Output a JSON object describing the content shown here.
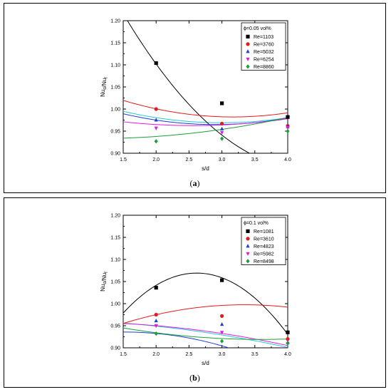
{
  "chart_data": [
    {
      "type": "line",
      "panel_label": "a",
      "ylabel": "Nu_d/Nu_f",
      "xlabel": "s/d",
      "xlim": [
        1.5,
        4.0
      ],
      "ylim": [
        0.9,
        1.2
      ],
      "xticks": [
        "1.5",
        "2.0",
        "2.5",
        "3.0",
        "3.5",
        "4.0"
      ],
      "yticks": [
        "0.90",
        "0.95",
        "1.00",
        "1.05",
        "1.10",
        "1.15",
        "1.20"
      ],
      "legend_title": "ϕ=0.05 vol%",
      "legend_position": "top-right",
      "grid": false,
      "series": [
        {
          "name": "Re=1103",
          "color": "#000000",
          "marker": "square",
          "x": [
            2.0,
            3.0,
            4.0
          ],
          "y": [
            1.104,
            1.013,
            0.982
          ],
          "fit": {
            "x": [
              1.5,
              4.0
            ],
            "coef": [
              1.691,
              -0.3835,
              0.0445
            ]
          }
        },
        {
          "name": "Re=3760",
          "color": "#e41a1c",
          "marker": "circle",
          "x": [
            2.0,
            3.0,
            4.0
          ],
          "y": [
            1.0,
            0.967,
            0.962
          ],
          "fit": {
            "x": [
              1.5,
              4.0
            ],
            "coef": [
              1.1175,
              -0.0855,
              0.0135
            ]
          }
        },
        {
          "name": "Re=5032",
          "color": "#1f3fcf",
          "marker": "triangle-up",
          "x": [
            2.0,
            3.0,
            4.0
          ],
          "y": [
            0.975,
            0.955,
            0.96
          ],
          "fit": {
            "x": [
              1.5,
              4.0
            ],
            "coef": [
              1.07,
              -0.0725,
              0.0125
            ]
          }
        },
        {
          "name": "Re=6254",
          "color": "#e019e0",
          "marker": "triangle-down",
          "x": [
            2.0,
            3.0,
            4.0
          ],
          "y": [
            0.957,
            0.947,
            0.958
          ],
          "fit": {
            "x": [
              1.5,
              4.0
            ],
            "coef": [
              1.012,
              -0.0385,
              0.0075
            ]
          }
        },
        {
          "name": "Re=8860",
          "color": "#1a9f3a",
          "marker": "diamond",
          "x": [
            2.0,
            3.0,
            4.0
          ],
          "y": [
            0.927,
            0.933,
            0.95
          ],
          "fit": {
            "x": [
              1.5,
              4.0
            ],
            "coef": [
              0.939,
              -0.0115,
              0.0055
            ]
          }
        }
      ],
      "extra_curves": [
        {
          "color": "#22c8d8",
          "coef": [
            1.0725,
            -0.069,
            0.0115
          ],
          "x": [
            1.5,
            4.0
          ]
        }
      ]
    },
    {
      "type": "line",
      "panel_label": "b",
      "ylabel": "Nu_d/Nu_f",
      "xlabel": "s/d",
      "xlim": [
        1.5,
        4.0
      ],
      "ylim": [
        0.9,
        1.2
      ],
      "xticks": [
        "1.5",
        "2.0",
        "2.5",
        "3.0",
        "3.5",
        "4.0"
      ],
      "yticks": [
        "0.90",
        "0.95",
        "1.00",
        "1.05",
        "1.10",
        "1.15",
        "1.20"
      ],
      "legend_title": "ϕ=0.1 vol%",
      "legend_position": "top-right",
      "grid": false,
      "series": [
        {
          "name": "Re=1081",
          "color": "#000000",
          "marker": "square",
          "x": [
            2.0,
            3.0,
            4.0
          ],
          "y": [
            1.036,
            1.053,
            0.935
          ],
          "fit": {
            "x": [
              1.5,
              4.0
            ],
            "coef": [
              0.5725,
              0.3795,
              -0.0725
            ]
          }
        },
        {
          "name": "Re=3610",
          "color": "#e41a1c",
          "marker": "circle",
          "x": [
            2.0,
            3.0,
            4.0
          ],
          "y": [
            0.975,
            0.972,
            0.92
          ],
          "fit": {
            "x": [
              1.5,
              4.0
            ],
            "coef": [
              0.858,
              0.0835,
              -0.0125
            ]
          }
        },
        {
          "name": "Re=4823",
          "color": "#1f3fcf",
          "marker": "triangle-up",
          "x": [
            2.0,
            3.0,
            4.0
          ],
          "y": [
            0.961,
            0.953,
            0.912
          ],
          "fit": {
            "x": [
              1.5,
              4.0
            ],
            "coef": [
              0.9015,
              0.0445,
              -0.0145
            ]
          }
        },
        {
          "name": "Re=5982",
          "color": "#e019e0",
          "marker": "triangle-down",
          "x": [
            2.0,
            3.0,
            4.0
          ],
          "y": [
            0.95,
            0.935,
            0.91
          ],
          "fit": {
            "x": [
              1.5,
              4.0
            ],
            "coef": [
              0.955,
              0.0075,
              -0.005
            ]
          }
        },
        {
          "name": "Re=8498",
          "color": "#1a9f3a",
          "marker": "diamond",
          "x": [
            2.0,
            3.0,
            4.0
          ],
          "y": [
            0.932,
            0.915,
            0.91
          ],
          "fit": {
            "x": [
              1.5,
              4.0
            ],
            "coef": [
              0.996,
              -0.043,
              0.006
            ]
          }
        }
      ],
      "extra_curves": [
        {
          "color": "#22c8d8",
          "coef": [
            0.965,
            0.0,
            -0.004
          ],
          "x": [
            1.5,
            4.0
          ]
        }
      ]
    }
  ]
}
